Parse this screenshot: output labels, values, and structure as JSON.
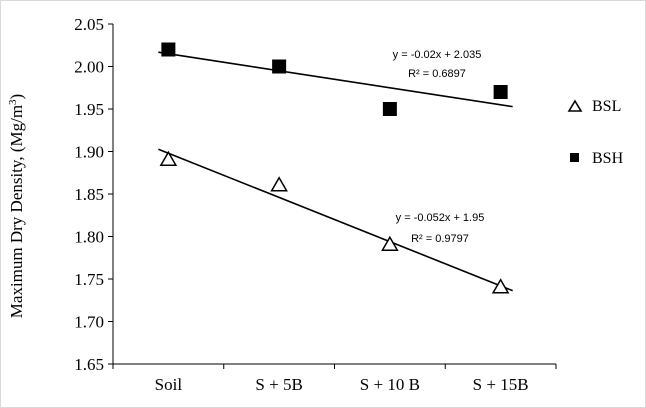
{
  "chart_data": {
    "type": "scatter",
    "title": "",
    "xlabel": "",
    "ylabel": "Maximum Dry Density, (Mg/m3)",
    "ylabel_parts": {
      "main": "Maximum Dry Density, (Mg/m",
      "sup": "3",
      "end": ")"
    },
    "categories": [
      "Soil",
      "S + 5B",
      "S + 10 B",
      "S + 15B"
    ],
    "ylim": [
      1.65,
      2.05
    ],
    "yticks": [
      "1.65",
      "1.70",
      "1.75",
      "1.80",
      "1.85",
      "1.90",
      "1.95",
      "2.00",
      "2.05"
    ],
    "grid": false,
    "legend_position": "right",
    "series": [
      {
        "name": "BSL",
        "marker": "open-triangle",
        "values": [
          1.89,
          1.86,
          1.79,
          1.74
        ],
        "trendline": {
          "slope": -0.052,
          "intercept": 1.95
        },
        "equation": "y = -0.052x + 1.95",
        "r2": "R² = 0.9797"
      },
      {
        "name": "BSH",
        "marker": "filled-square",
        "values": [
          2.02,
          2.0,
          1.95,
          1.97
        ],
        "trendline": {
          "slope": -0.02,
          "intercept": 2.035
        },
        "equation": "y = -0.02x + 2.035",
        "r2": "R² = 0.6897"
      }
    ],
    "colors": {
      "axis": "#000000",
      "marker": "#000000",
      "frame": "#d9d9d9"
    }
  }
}
